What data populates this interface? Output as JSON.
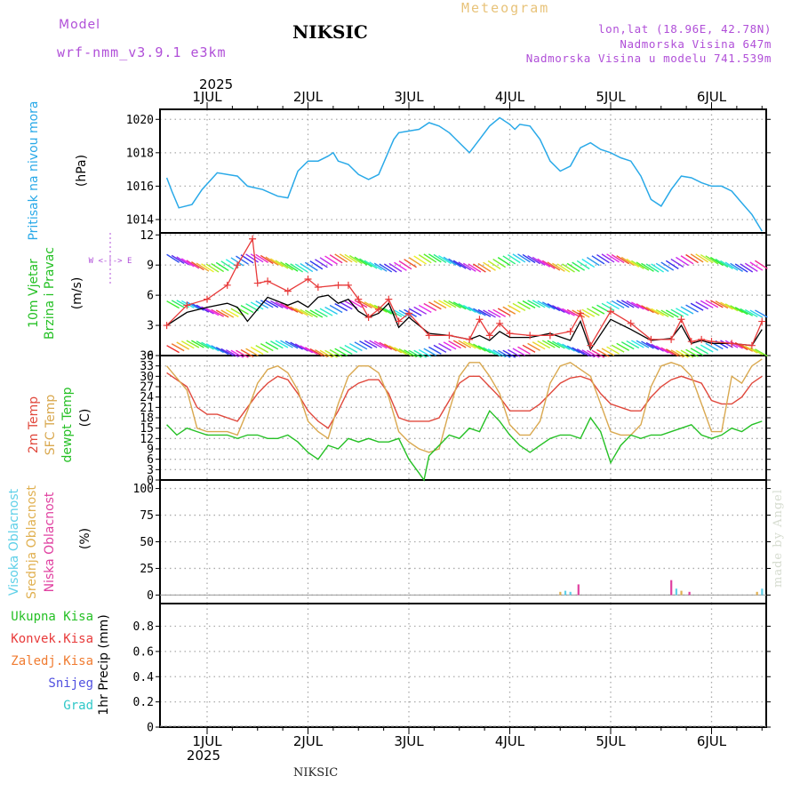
{
  "header": {
    "model_label": "Model",
    "model_run": "wrf-nmm_v3.9.1 e3km",
    "title": "NIKSIC",
    "product": "Meteogram",
    "coords": "lon,lat (18.96E, 42.78N)",
    "elevation": "Nadmorska Visina 647m",
    "model_elevation": "Nadmorska Visina u modelu 741.539m"
  },
  "footer": {
    "station": "NIKSIC"
  },
  "watermark": "made by Angel",
  "colors": {
    "pressure": "#29a9e8",
    "wind_black": "#000000",
    "wind_gust": "#e83a3a",
    "temp_2m": "#e0483c",
    "temp_sfc": "#d9a84f",
    "dewpoint": "#25c025",
    "cloud_high": "#5fd0e8",
    "cloud_mid": "#e0b050",
    "cloud_low": "#e040a0",
    "precip_total": "#25c025",
    "precip_conv": "#e83a3a",
    "precip_frozen": "#f07b30",
    "precip_snow": "#5050e0",
    "precip_hail": "#30c8c8",
    "compass": "#b04fd8"
  },
  "chart_data": [
    {
      "type": "line",
      "panel": "pressure",
      "ylabel": [
        "Pritisak na nivou mora",
        "(hPa)"
      ],
      "ylim": [
        1013.2,
        1020.6
      ],
      "yticks": [
        1014,
        1016,
        1018,
        1020
      ],
      "x_day_start": 0.6,
      "days": [
        "1JUL",
        "2JUL",
        "3JUL",
        "4JUL",
        "5JUL",
        "6JUL"
      ],
      "year": "2025",
      "x": [
        0.6,
        0.65,
        0.72,
        0.85,
        0.95,
        1.1,
        1.3,
        1.4,
        1.55,
        1.7,
        1.8,
        1.9,
        2.0,
        2.1,
        2.2,
        2.25,
        2.3,
        2.4,
        2.5,
        2.6,
        2.7,
        2.8,
        2.85,
        2.9,
        3.0,
        3.1,
        3.2,
        3.3,
        3.4,
        3.5,
        3.6,
        3.7,
        3.8,
        3.9,
        4.0,
        4.05,
        4.1,
        4.2,
        4.3,
        4.4,
        4.5,
        4.6,
        4.7,
        4.8,
        4.9,
        5.0,
        5.1,
        5.2,
        5.3,
        5.4,
        5.5,
        5.6,
        5.7,
        5.8,
        5.9,
        6.0,
        6.1,
        6.2,
        6.3,
        6.4,
        6.5
      ],
      "values": [
        1016.5,
        1015.7,
        1014.7,
        1014.9,
        1015.8,
        1016.8,
        1016.6,
        1016.0,
        1015.8,
        1015.4,
        1015.3,
        1016.9,
        1017.5,
        1017.5,
        1017.8,
        1018.0,
        1017.5,
        1017.3,
        1016.7,
        1016.4,
        1016.7,
        1018.1,
        1018.8,
        1019.2,
        1019.3,
        1019.4,
        1019.8,
        1019.6,
        1019.2,
        1018.6,
        1018.0,
        1018.8,
        1019.6,
        1020.1,
        1019.7,
        1019.4,
        1019.7,
        1019.6,
        1018.8,
        1017.5,
        1016.9,
        1017.2,
        1018.3,
        1018.6,
        1018.2,
        1018.0,
        1017.7,
        1017.5,
        1016.6,
        1015.2,
        1014.8,
        1015.8,
        1016.6,
        1016.5,
        1016.2,
        1016.0,
        1016.0,
        1015.7,
        1015.0,
        1014.3,
        1013.3
      ]
    },
    {
      "type": "line",
      "panel": "wind",
      "ylabel": [
        "10m Vjetar",
        "Brzina i Pravac",
        "(m/s)"
      ],
      "compass": "W <-|-> E",
      "ylim": [
        0,
        12.2
      ],
      "yticks": [
        0,
        3,
        6,
        9,
        12
      ],
      "series": [
        {
          "name": "Wind speed (black)",
          "x": [
            0.6,
            0.8,
            1.0,
            1.2,
            1.3,
            1.4,
            1.6,
            1.8,
            1.9,
            2.0,
            2.1,
            2.2,
            2.3,
            2.4,
            2.5,
            2.6,
            2.7,
            2.8,
            2.9,
            3.0,
            3.2,
            3.4,
            3.6,
            3.7,
            3.8,
            3.9,
            4.0,
            4.2,
            4.4,
            4.6,
            4.7,
            4.8,
            5.0,
            5.2,
            5.4,
            5.6,
            5.7,
            5.8,
            5.9,
            6.0,
            6.2,
            6.4,
            6.5
          ],
          "values": [
            3.0,
            4.3,
            4.8,
            5.2,
            4.8,
            3.4,
            5.8,
            5.0,
            5.4,
            4.8,
            5.8,
            6.0,
            5.2,
            5.6,
            4.4,
            3.8,
            4.2,
            5.2,
            2.8,
            3.8,
            2.2,
            2.0,
            1.6,
            2.0,
            1.5,
            2.4,
            1.8,
            1.8,
            2.2,
            1.5,
            3.4,
            0.6,
            3.6,
            2.6,
            1.5,
            1.7,
            3.0,
            1.2,
            1.5,
            1.2,
            1.2,
            1.0,
            2.6
          ]
        },
        {
          "name": "Wind gust (red +)",
          "x": [
            0.6,
            0.8,
            1.0,
            1.2,
            1.3,
            1.45,
            1.5,
            1.6,
            1.8,
            2.0,
            2.1,
            2.3,
            2.4,
            2.5,
            2.6,
            2.7,
            2.8,
            2.9,
            3.0,
            3.2,
            3.4,
            3.6,
            3.7,
            3.8,
            3.9,
            4.0,
            4.2,
            4.4,
            4.6,
            4.7,
            4.8,
            5.0,
            5.2,
            5.4,
            5.6,
            5.7,
            5.8,
            5.9,
            6.0,
            6.2,
            6.4,
            6.5
          ],
          "values": [
            3.0,
            5.0,
            5.6,
            7.0,
            9.0,
            11.6,
            7.2,
            7.4,
            6.4,
            7.6,
            6.8,
            7.0,
            7.0,
            5.6,
            3.8,
            4.6,
            5.6,
            3.4,
            4.2,
            2.0,
            2.0,
            1.6,
            3.6,
            2.0,
            3.2,
            2.2,
            2.0,
            2.0,
            2.4,
            4.2,
            1.0,
            4.4,
            3.2,
            1.6,
            1.6,
            3.6,
            1.4,
            1.6,
            1.4,
            1.2,
            1.0,
            3.4
          ]
        }
      ]
    },
    {
      "type": "line",
      "panel": "temperature",
      "ylabel": [
        "2m Temp",
        "SFC Temp",
        "dewpt Temp",
        "(C)"
      ],
      "ylim": [
        0,
        36
      ],
      "yticks": [
        0,
        3,
        6,
        9,
        12,
        15,
        18,
        21,
        24,
        27,
        30,
        33,
        36
      ],
      "series": [
        {
          "name": "2m Temp",
          "x": [
            0.6,
            0.8,
            0.9,
            1.0,
            1.1,
            1.2,
            1.3,
            1.4,
            1.5,
            1.6,
            1.7,
            1.8,
            1.9,
            2.0,
            2.1,
            2.2,
            2.3,
            2.4,
            2.5,
            2.6,
            2.7,
            2.8,
            2.9,
            3.0,
            3.1,
            3.2,
            3.3,
            3.4,
            3.5,
            3.6,
            3.7,
            3.8,
            3.9,
            4.0,
            4.1,
            4.2,
            4.3,
            4.4,
            4.5,
            4.6,
            4.7,
            4.8,
            4.9,
            5.0,
            5.1,
            5.2,
            5.3,
            5.4,
            5.5,
            5.6,
            5.7,
            5.8,
            5.9,
            6.0,
            6.1,
            6.2,
            6.3,
            6.4,
            6.5
          ],
          "values": [
            31,
            27,
            21,
            19,
            19,
            18,
            17,
            21,
            25,
            28,
            30,
            29,
            25,
            20,
            17,
            15,
            20,
            26,
            28,
            29,
            29,
            25,
            18,
            17,
            17,
            17,
            18,
            23,
            28,
            30,
            30,
            27,
            24,
            20,
            20,
            20,
            22,
            25,
            28,
            29.5,
            30,
            29,
            25,
            22,
            21,
            20,
            20,
            24,
            27,
            29,
            30,
            29,
            28,
            23,
            22,
            22,
            24,
            28,
            30
          ]
        },
        {
          "name": "SFC Temp",
          "x": [
            0.6,
            0.8,
            0.9,
            1.0,
            1.1,
            1.2,
            1.3,
            1.4,
            1.5,
            1.6,
            1.7,
            1.8,
            1.9,
            2.0,
            2.1,
            2.2,
            2.3,
            2.4,
            2.5,
            2.6,
            2.7,
            2.8,
            2.9,
            3.0,
            3.1,
            3.2,
            3.3,
            3.4,
            3.5,
            3.6,
            3.7,
            3.8,
            3.9,
            4.0,
            4.1,
            4.2,
            4.3,
            4.4,
            4.5,
            4.6,
            4.7,
            4.8,
            4.9,
            5.0,
            5.1,
            5.2,
            5.3,
            5.4,
            5.5,
            5.6,
            5.7,
            5.8,
            5.9,
            6.0,
            6.1,
            6.2,
            6.3,
            6.4,
            6.5
          ],
          "values": [
            33,
            26,
            15,
            14,
            14,
            14,
            13,
            20,
            28,
            32,
            33,
            31,
            26,
            17,
            14,
            12,
            22,
            30,
            33,
            33,
            31,
            24,
            14,
            11,
            9,
            8,
            9,
            20,
            30,
            34,
            34,
            30,
            25,
            16,
            13,
            13,
            17,
            28,
            33,
            34,
            32,
            30,
            22,
            14,
            13,
            13,
            16,
            27,
            33,
            34,
            33,
            30,
            22,
            14,
            14,
            30,
            28,
            33,
            35
          ]
        },
        {
          "name": "dewpt Temp",
          "x": [
            0.6,
            0.7,
            0.8,
            0.9,
            1.0,
            1.1,
            1.2,
            1.3,
            1.4,
            1.5,
            1.6,
            1.7,
            1.8,
            1.9,
            2.0,
            2.1,
            2.2,
            2.3,
            2.4,
            2.5,
            2.6,
            2.7,
            2.8,
            2.9,
            3.0,
            3.05,
            3.1,
            3.15,
            3.2,
            3.3,
            3.4,
            3.5,
            3.6,
            3.7,
            3.8,
            3.9,
            4.0,
            4.1,
            4.2,
            4.3,
            4.4,
            4.5,
            4.6,
            4.7,
            4.8,
            4.9,
            5.0,
            5.1,
            5.2,
            5.3,
            5.4,
            5.5,
            5.6,
            5.7,
            5.8,
            5.9,
            6.0,
            6.1,
            6.2,
            6.3,
            6.4,
            6.5
          ],
          "values": [
            16,
            13,
            15,
            14,
            13,
            13,
            13,
            12,
            13,
            13,
            12,
            12,
            13,
            11,
            8,
            6,
            10,
            9,
            12,
            11,
            12,
            11,
            11,
            12,
            6,
            4,
            2,
            0,
            7,
            10,
            13,
            12,
            15,
            14,
            20,
            17,
            13,
            10,
            8,
            10,
            12,
            13,
            13,
            12,
            18,
            14,
            5,
            10,
            13,
            12,
            13,
            13,
            14,
            15,
            16,
            13,
            12,
            13,
            15,
            14,
            16,
            17
          ]
        }
      ]
    },
    {
      "type": "bar",
      "panel": "cloud",
      "ylabel": [
        "Visoka Oblacnost",
        "Srednja Oblacnost",
        "Niska Oblacnost",
        "(%)"
      ],
      "ylim": [
        -8,
        108
      ],
      "yticks": [
        0,
        25,
        50,
        75,
        100
      ],
      "series": [
        {
          "name": "Visoka Oblacnost",
          "x": [
            4.55,
            4.6,
            5.65,
            6.5
          ],
          "values": [
            4,
            3,
            6,
            6
          ]
        },
        {
          "name": "Srednja Oblacnost",
          "x": [
            4.5,
            5.7,
            6.45
          ],
          "values": [
            3,
            4,
            3
          ]
        },
        {
          "name": "Niska Oblacnost",
          "x": [
            4.68,
            5.6,
            5.78
          ],
          "values": [
            10,
            14,
            3
          ]
        }
      ]
    },
    {
      "type": "bar",
      "panel": "precip",
      "ylabel": [
        "1hr Precip (mm)"
      ],
      "legend": [
        "Ukupna Kisa",
        "Konvek.Kisa",
        "Zaledj.Kisa",
        "Snijeg",
        "Grad"
      ],
      "ylim": [
        0,
        0.98
      ],
      "yticks": [
        0,
        0.2,
        0.4,
        0.6,
        0.8
      ],
      "series": [
        {
          "name": "Ukupna Kisa",
          "x": [],
          "values": []
        }
      ]
    }
  ]
}
